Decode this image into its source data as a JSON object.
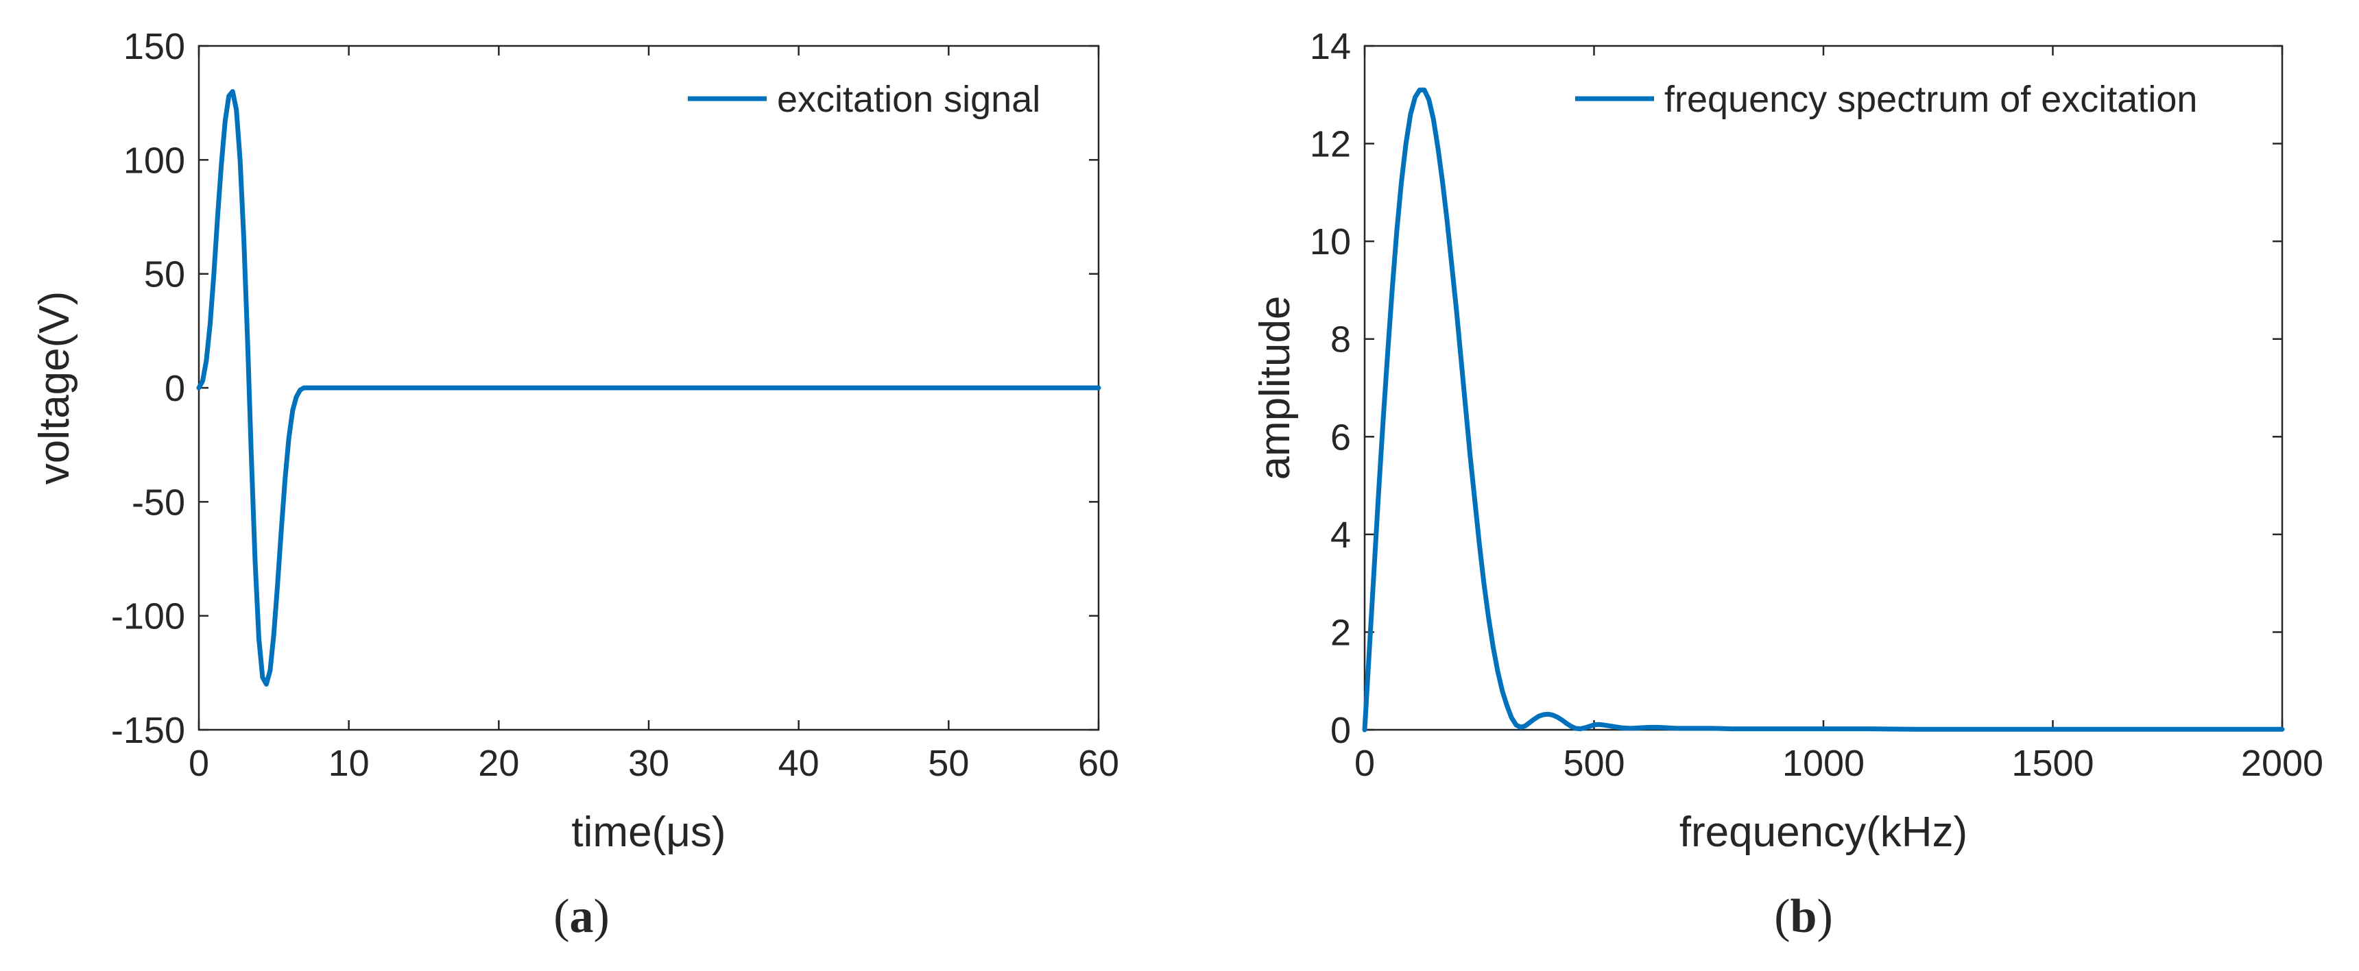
{
  "chart_data": [
    {
      "type": "line",
      "panel_label": "(a)",
      "xlabel": "time(μs)",
      "ylabel": "voltage(V)",
      "xlim": [
        0,
        60
      ],
      "ylim": [
        -150,
        150
      ],
      "xticks": [
        0,
        10,
        20,
        30,
        40,
        50,
        60
      ],
      "yticks": [
        -150,
        -100,
        -50,
        0,
        50,
        100,
        150
      ],
      "xtick_labels": [
        "0",
        "10",
        "20",
        "30",
        "40",
        "50",
        "60"
      ],
      "ytick_labels": [
        "-150",
        "-100",
        "-50",
        "0",
        "50",
        "100",
        "150"
      ],
      "grid": false,
      "legend_position": "top-right",
      "series": [
        {
          "name": "excitation signal",
          "color": "#0072BD",
          "x": [
            0,
            0.25,
            0.5,
            0.75,
            1.0,
            1.25,
            1.5,
            1.75,
            2.0,
            2.25,
            2.5,
            2.75,
            3.0,
            3.25,
            3.5,
            3.75,
            4.0,
            4.25,
            4.5,
            4.75,
            5.0,
            5.25,
            5.5,
            5.75,
            6.0,
            6.25,
            6.5,
            6.75,
            7.0,
            7.25,
            7.5,
            7.75,
            8.0,
            10,
            20,
            30,
            40,
            50,
            60
          ],
          "y": [
            0,
            3,
            12,
            28,
            50,
            75,
            98,
            117,
            128,
            130,
            122,
            100,
            65,
            20,
            -30,
            -76,
            -110,
            -127,
            -130,
            -124,
            -108,
            -86,
            -62,
            -40,
            -22,
            -10,
            -4,
            -1,
            0,
            0,
            0,
            0,
            0,
            0,
            0,
            0,
            0,
            0,
            0
          ]
        }
      ]
    },
    {
      "type": "line",
      "panel_label": "(b)",
      "xlabel": "frequency(kHz)",
      "ylabel": "amplitude",
      "xlim": [
        0,
        2000
      ],
      "ylim": [
        0,
        14
      ],
      "xticks": [
        0,
        500,
        1000,
        1500,
        2000
      ],
      "yticks": [
        0,
        2,
        4,
        6,
        8,
        10,
        12,
        14
      ],
      "xtick_labels": [
        "0",
        "500",
        "1000",
        "1500",
        "2000"
      ],
      "ytick_labels": [
        "0",
        "2",
        "4",
        "6",
        "8",
        "10",
        "12",
        "14"
      ],
      "grid": false,
      "legend_position": "top-right",
      "series": [
        {
          "name": "frequency spectrum of excitation",
          "color": "#0072BD",
          "x": [
            0,
            10,
            20,
            30,
            40,
            50,
            60,
            70,
            80,
            90,
            100,
            110,
            120,
            130,
            140,
            150,
            160,
            170,
            180,
            190,
            200,
            210,
            220,
            230,
            240,
            250,
            260,
            270,
            280,
            290,
            300,
            310,
            320,
            330,
            340,
            350,
            360,
            370,
            380,
            390,
            400,
            410,
            420,
            430,
            440,
            450,
            460,
            470,
            480,
            490,
            500,
            510,
            520,
            540,
            560,
            580,
            600,
            620,
            640,
            660,
            680,
            700,
            720,
            760,
            800,
            900,
            1000,
            1100,
            1200,
            1500,
            2000
          ],
          "y": [
            0,
            1.6,
            3.2,
            4.8,
            6.3,
            7.7,
            9.0,
            10.2,
            11.2,
            12.0,
            12.6,
            12.95,
            13.1,
            13.1,
            12.9,
            12.5,
            11.9,
            11.2,
            10.4,
            9.5,
            8.6,
            7.6,
            6.6,
            5.6,
            4.7,
            3.8,
            3.0,
            2.3,
            1.7,
            1.2,
            0.8,
            0.5,
            0.25,
            0.1,
            0.05,
            0.08,
            0.15,
            0.22,
            0.28,
            0.31,
            0.32,
            0.3,
            0.26,
            0.2,
            0.13,
            0.07,
            0.03,
            0.02,
            0.04,
            0.07,
            0.1,
            0.11,
            0.1,
            0.07,
            0.04,
            0.03,
            0.04,
            0.05,
            0.05,
            0.04,
            0.03,
            0.03,
            0.03,
            0.03,
            0.02,
            0.02,
            0.02,
            0.02,
            0.01,
            0.01,
            0.01
          ]
        }
      ]
    }
  ]
}
